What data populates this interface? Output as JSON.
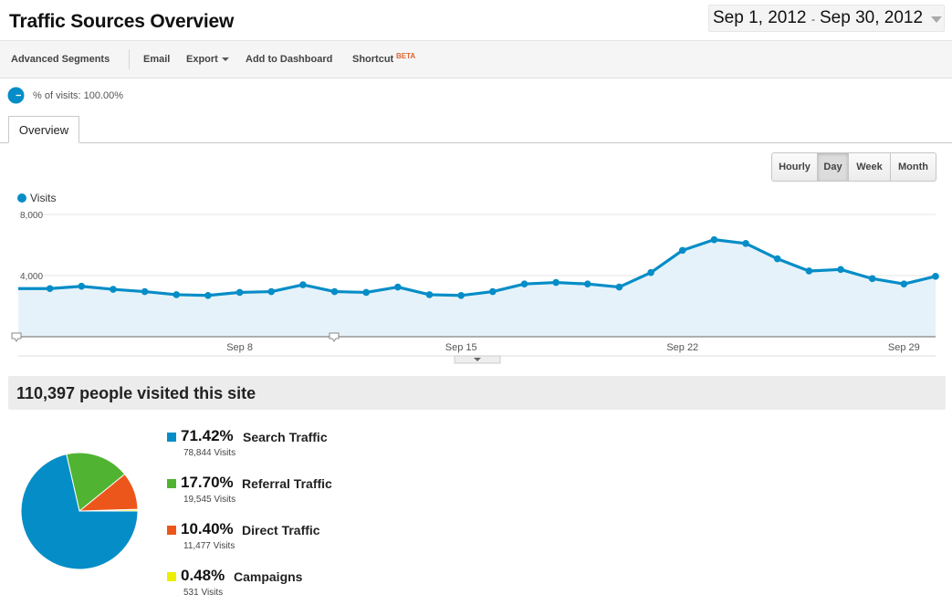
{
  "header": {
    "title": "Traffic Sources Overview",
    "date_start": "Sep 1, 2012",
    "date_sep": "-",
    "date_end": "Sep 30, 2012"
  },
  "toolbar": {
    "advanced_segments": "Advanced Segments",
    "email": "Email",
    "export": "Export",
    "add_to_dashboard": "Add to Dashboard",
    "shortcut": "Shortcut",
    "beta": "BETA"
  },
  "segment": {
    "label": "% of visits: 100.00%"
  },
  "tabs": {
    "overview": "Overview"
  },
  "granularity": {
    "hourly": "Hourly",
    "day": "Day",
    "week": "Week",
    "month": "Month",
    "selected": "Day"
  },
  "chart_data": {
    "type": "area",
    "series": [
      {
        "name": "Visits",
        "color": "#058dc7",
        "x": [
          "Sep 1",
          "Sep 2",
          "Sep 3",
          "Sep 4",
          "Sep 5",
          "Sep 6",
          "Sep 7",
          "Sep 8",
          "Sep 9",
          "Sep 10",
          "Sep 11",
          "Sep 12",
          "Sep 13",
          "Sep 14",
          "Sep 15",
          "Sep 16",
          "Sep 17",
          "Sep 18",
          "Sep 19",
          "Sep 20",
          "Sep 21",
          "Sep 22",
          "Sep 23",
          "Sep 24",
          "Sep 25",
          "Sep 26",
          "Sep 27",
          "Sep 28",
          "Sep 29",
          "Sep 30"
        ],
        "values": [
          3150,
          3150,
          3300,
          3100,
          2950,
          2750,
          2700,
          2900,
          2950,
          3400,
          2950,
          2900,
          3250,
          2750,
          2700,
          2950,
          3450,
          3550,
          3450,
          3250,
          4200,
          5650,
          6350,
          6100,
          5100,
          4300,
          4400,
          3800,
          3450,
          3950
        ]
      }
    ],
    "y_ticks": [
      "4,000",
      "8,000"
    ],
    "ylim": [
      0,
      8000
    ],
    "x_ticks": [
      {
        "label": "Sep 8",
        "index": 7
      },
      {
        "label": "Sep 15",
        "index": 14
      },
      {
        "label": "Sep 22",
        "index": 21
      },
      {
        "label": "Sep 29",
        "index": 28
      }
    ],
    "grid": true,
    "legend": "top-left"
  },
  "summary": {
    "text": "110,397 people visited this site"
  },
  "sources": [
    {
      "pct": "71.42%",
      "name": "Search Traffic",
      "visits": "78,844 Visits",
      "value": 71.42,
      "color": "#058dc7"
    },
    {
      "pct": "17.70%",
      "name": "Referral Traffic",
      "visits": "19,545 Visits",
      "value": 17.7,
      "color": "#50b432"
    },
    {
      "pct": "10.40%",
      "name": "Direct Traffic",
      "visits": "11,477 Visits",
      "value": 10.4,
      "color": "#ed561b"
    },
    {
      "pct": "0.48%",
      "name": "Campaigns",
      "visits": "531 Visits",
      "value": 0.48,
      "color": "#edef00"
    }
  ]
}
